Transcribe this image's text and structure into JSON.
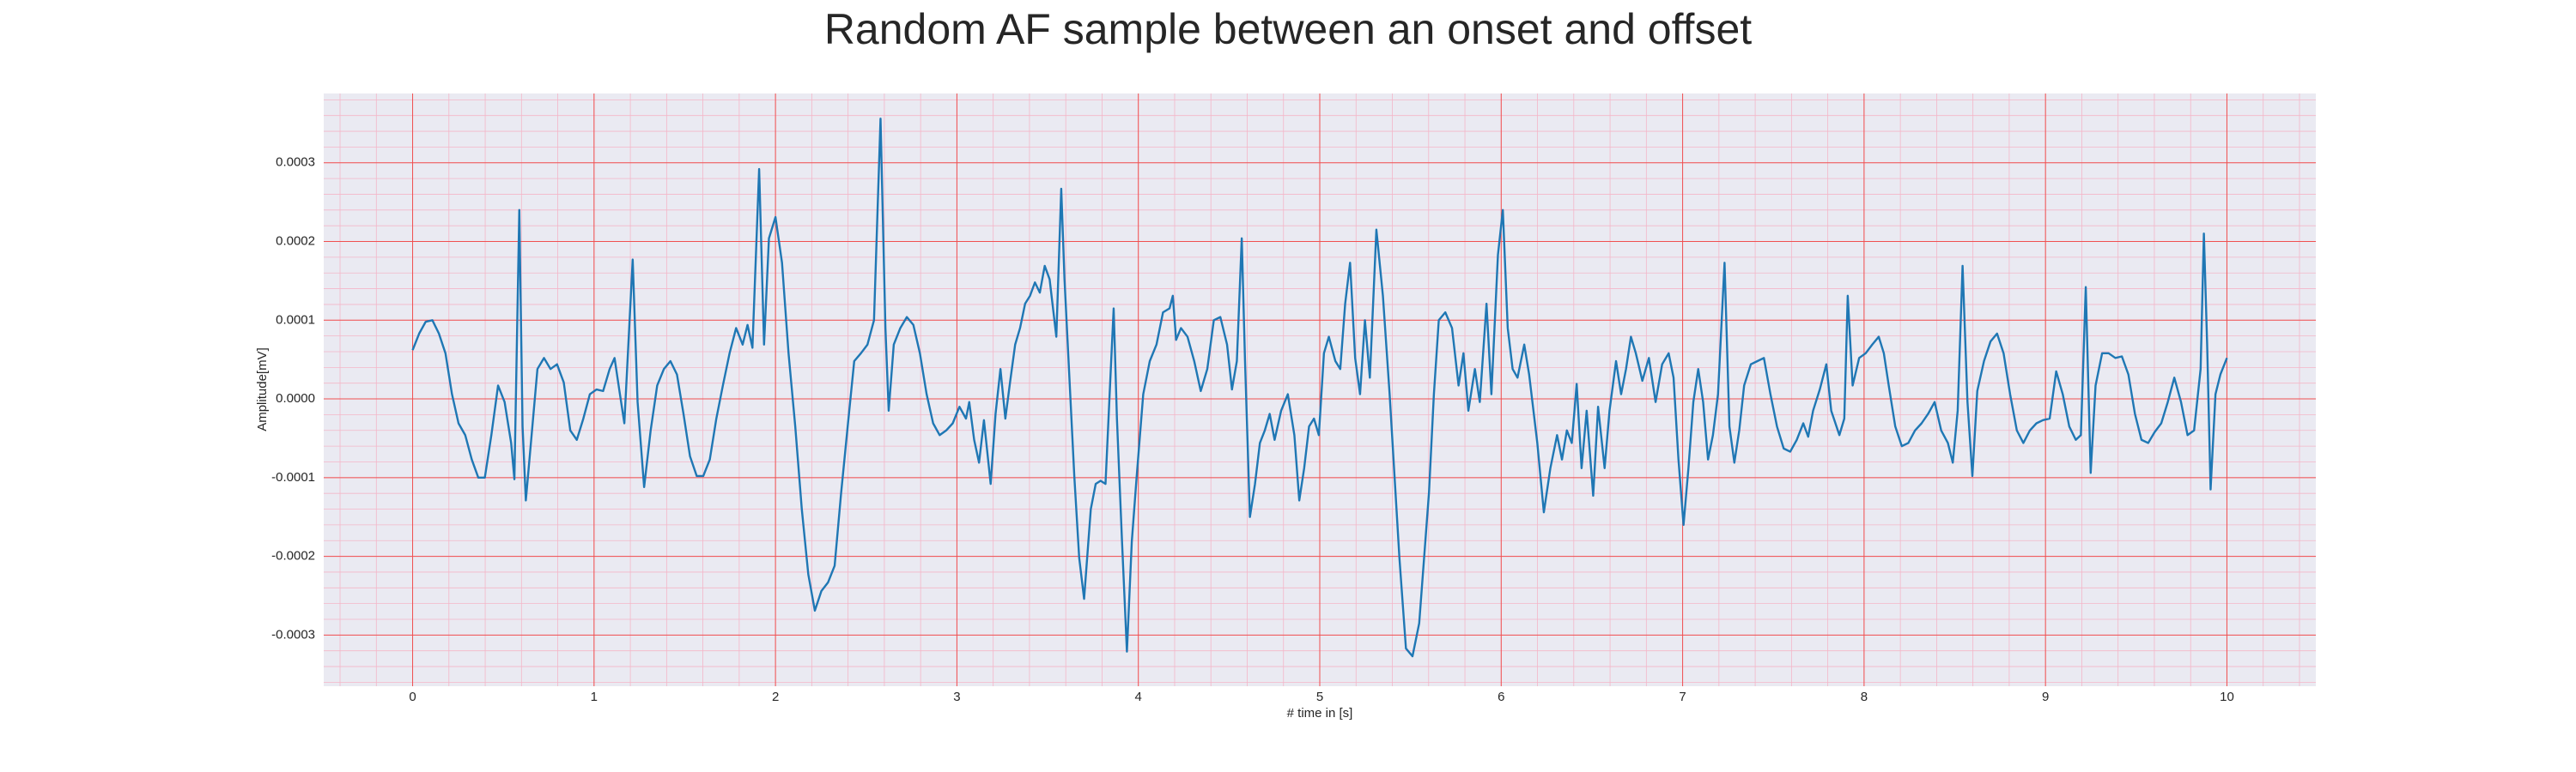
{
  "chart_data": {
    "type": "line",
    "title": "Random AF sample between an onset and offset",
    "xlabel": "# time in [s]",
    "ylabel": "Amplitude[mV]",
    "xlim": [
      -0.49,
      10.49
    ],
    "ylim": [
      -0.000365,
      0.000388
    ],
    "xticks": [
      0,
      1,
      2,
      3,
      4,
      5,
      6,
      7,
      8,
      9,
      10
    ],
    "yticks": [
      -0.0003,
      -0.0002,
      -0.0001,
      {
        "value": 0,
        "label": "0.0000"
      },
      0.0001,
      0.0002,
      0.0003
    ],
    "grid": true,
    "minor_grid": true,
    "x": [
      0,
      0.036,
      0.072,
      0.109,
      0.145,
      0.181,
      0.217,
      0.253,
      0.29,
      0.326,
      0.362,
      0.398,
      0.434,
      0.471,
      0.507,
      0.543,
      0.561,
      0.588,
      0.606,
      0.624,
      0.652,
      0.688,
      0.724,
      0.76,
      0.796,
      0.833,
      0.869,
      0.905,
      0.941,
      0.977,
      1.014,
      1.05,
      1.086,
      1.113,
      1.14,
      1.167,
      1.213,
      1.24,
      1.276,
      1.312,
      1.348,
      1.385,
      1.421,
      1.457,
      1.493,
      1.529,
      1.566,
      1.602,
      1.638,
      1.674,
      1.71,
      1.747,
      1.783,
      1.819,
      1.846,
      1.873,
      1.91,
      1.937,
      1.964,
      2,
      2.036,
      2.072,
      2.109,
      2.145,
      2.181,
      2.217,
      2.253,
      2.29,
      2.326,
      2.362,
      2.398,
      2.434,
      2.471,
      2.507,
      2.543,
      2.579,
      2.606,
      2.624,
      2.652,
      2.688,
      2.724,
      2.76,
      2.796,
      2.833,
      2.869,
      2.905,
      2.941,
      2.977,
      3.014,
      3.05,
      3.068,
      3.095,
      3.122,
      3.149,
      3.186,
      3.213,
      3.24,
      3.267,
      3.294,
      3.321,
      3.348,
      3.376,
      3.403,
      3.43,
      3.457,
      3.484,
      3.511,
      3.548,
      3.575,
      3.593,
      3.62,
      3.647,
      3.674,
      3.701,
      3.738,
      3.765,
      3.792,
      3.819,
      3.846,
      3.864,
      3.882,
      3.91,
      3.937,
      3.964,
      3.991,
      4.027,
      4.063,
      4.1,
      4.136,
      4.172,
      4.19,
      4.208,
      4.235,
      4.271,
      4.308,
      4.344,
      4.38,
      4.416,
      4.452,
      4.489,
      4.516,
      4.543,
      4.57,
      4.588,
      4.615,
      4.643,
      4.67,
      4.697,
      4.724,
      4.751,
      4.787,
      4.824,
      4.86,
      4.887,
      4.914,
      4.941,
      4.968,
      4.995,
      5.023,
      5.05,
      5.086,
      5.113,
      5.14,
      5.167,
      5.195,
      5.222,
      5.249,
      5.276,
      5.312,
      5.348,
      5.385,
      5.412,
      5.439,
      5.475,
      5.511,
      5.548,
      5.575,
      5.602,
      5.629,
      5.656,
      5.692,
      5.729,
      5.765,
      5.792,
      5.819,
      5.855,
      5.882,
      5.919,
      5.946,
      5.982,
      6.009,
      6.036,
      6.063,
      6.09,
      6.127,
      6.154,
      6.199,
      6.235,
      6.271,
      6.308,
      6.335,
      6.362,
      6.389,
      6.416,
      6.443,
      6.471,
      6.507,
      6.534,
      6.57,
      6.597,
      6.633,
      6.661,
      6.688,
      6.715,
      6.742,
      6.778,
      6.814,
      6.851,
      6.887,
      6.923,
      6.95,
      6.977,
      7.005,
      7.032,
      7.059,
      7.086,
      7.113,
      7.14,
      7.167,
      7.195,
      7.231,
      7.258,
      7.285,
      7.312,
      7.339,
      7.376,
      7.412,
      7.448,
      7.484,
      7.52,
      7.557,
      7.593,
      7.629,
      7.665,
      7.692,
      7.719,
      7.756,
      7.792,
      7.819,
      7.864,
      7.891,
      7.91,
      7.937,
      7.973,
      8.009,
      8.045,
      8.081,
      8.109,
      8.136,
      8.172,
      8.208,
      8.244,
      8.281,
      8.317,
      8.353,
      8.389,
      8.425,
      8.462,
      8.489,
      8.516,
      8.543,
      8.57,
      8.597,
      8.624,
      8.661,
      8.697,
      8.733,
      8.769,
      8.805,
      8.842,
      8.878,
      8.914,
      8.95,
      8.986,
      9.023,
      9.059,
      9.095,
      9.131,
      9.167,
      9.195,
      9.222,
      9.249,
      9.276,
      9.312,
      9.348,
      9.385,
      9.421,
      9.457,
      9.493,
      9.529,
      9.566,
      9.602,
      9.638,
      9.674,
      9.71,
      9.747,
      9.783,
      9.819,
      9.855,
      9.873,
      9.891,
      9.91,
      9.937,
      9.964,
      10
    ],
    "series": [
      {
        "color": "#1f77b4",
        "values": [
          6.2e-05,
          8.3e-05,
          9.8e-05,
          0.0001,
          8.3e-05,
          5.8e-05,
          6e-06,
          -3.1e-05,
          -4.6e-05,
          -7.7e-05,
          -0.0001,
          -0.0001,
          -4.6e-05,
          1.7e-05,
          -4e-06,
          -5.6e-05,
          -0.000102,
          0.00024,
          -3.5e-05,
          -0.000129,
          -5.6e-05,
          3.8e-05,
          5.2e-05,
          3.8e-05,
          4.4e-05,
          2.1e-05,
          -4e-05,
          -5.2e-05,
          -2.5e-05,
          6e-06,
          1.2e-05,
          1e-05,
          3.8e-05,
          5.2e-05,
          1e-05,
          -3.1e-05,
          0.000177,
          -4e-06,
          -0.000112,
          -4e-05,
          1.7e-05,
          3.8e-05,
          4.8e-05,
          3.1e-05,
          -1.9e-05,
          -7.3e-05,
          -9.8e-05,
          -9.8e-05,
          -7.7e-05,
          -2.5e-05,
          1.7e-05,
          5.8e-05,
          9e-05,
          6.9e-05,
          9.4e-05,
          6.5e-05,
          0.000292,
          6.9e-05,
          0.000204,
          0.000231,
          0.000173,
          5.8e-05,
          -3.5e-05,
          -0.00014,
          -0.000223,
          -0.000269,
          -0.000244,
          -0.000233,
          -0.000212,
          -0.000119,
          -3.5e-05,
          4.8e-05,
          5.8e-05,
          6.9e-05,
          0.0001,
          0.000356,
          9e-05,
          -1.5e-05,
          6.9e-05,
          9e-05,
          0.000104,
          9.4e-05,
          5.8e-05,
          6e-06,
          -3.1e-05,
          -4.6e-05,
          -4e-05,
          -3.1e-05,
          -1e-05,
          -2.5e-05,
          -4e-06,
          -5.2e-05,
          -8.1e-05,
          -2.7e-05,
          -0.000108,
          -1.9e-05,
          3.8e-05,
          -2.5e-05,
          2.3e-05,
          6.9e-05,
          9e-05,
          0.000121,
          0.000131,
          0.000148,
          0.000135,
          0.000169,
          0.000152,
          7.9e-05,
          0.000267,
          0.000152,
          2.7e-05,
          -9.8e-05,
          -0.000202,
          -0.000254,
          -0.00014,
          -0.000108,
          -0.000104,
          -0.000108,
          2.7e-05,
          0.000115,
          -2.5e-05,
          -0.000181,
          -0.000321,
          -0.000181,
          -9.8e-05,
          6e-06,
          4.8e-05,
          6.9e-05,
          0.00011,
          0.000115,
          0.000131,
          7.5e-05,
          9e-05,
          7.9e-05,
          4.8e-05,
          1e-05,
          3.8e-05,
          0.0001,
          0.000104,
          6.9e-05,
          1.2e-05,
          4.8e-05,
          0.000204,
          4.8e-05,
          -0.00015,
          -0.000108,
          -5.6e-05,
          -4e-05,
          -1.9e-05,
          -5.2e-05,
          -1.5e-05,
          6e-06,
          -4.6e-05,
          -0.000129,
          -8.8e-05,
          -3.5e-05,
          -2.5e-05,
          -4.6e-05,
          5.8e-05,
          7.9e-05,
          4.8e-05,
          3.8e-05,
          0.000121,
          0.000173,
          5.2e-05,
          6e-06,
          0.0001,
          2.7e-05,
          0.000215,
          0.000131,
          6e-06,
          -9.8e-05,
          -0.000202,
          -0.000317,
          -0.000327,
          -0.000285,
          -0.000202,
          -0.000119,
          6e-06,
          0.0001,
          0.00011,
          9e-05,
          1.7e-05,
          5.8e-05,
          -1.5e-05,
          3.8e-05,
          -4e-06,
          0.000121,
          6e-06,
          0.000183,
          0.00024,
          9e-05,
          3.8e-05,
          2.7e-05,
          6.9e-05,
          3.1e-05,
          -5.6e-05,
          -0.000144,
          -8.8e-05,
          -4.6e-05,
          -7.7e-05,
          -4e-05,
          -5.6e-05,
          1.9e-05,
          -8.8e-05,
          -1.5e-05,
          -0.000123,
          -1e-05,
          -8.8e-05,
          -1.5e-05,
          4.8e-05,
          6e-06,
          3.8e-05,
          7.9e-05,
          5.8e-05,
          2.3e-05,
          5.2e-05,
          -4e-06,
          4.4e-05,
          5.8e-05,
          2.7e-05,
          -7.7e-05,
          -0.00016,
          -8.8e-05,
          -4e-06,
          3.8e-05,
          -4e-06,
          -7.7e-05,
          -4.6e-05,
          6e-06,
          0.000173,
          -3.5e-05,
          -8.1e-05,
          -4e-05,
          1.7e-05,
          4.4e-05,
          4.8e-05,
          5.2e-05,
          6e-06,
          -3.5e-05,
          -6.3e-05,
          -6.7e-05,
          -5.2e-05,
          -3.1e-05,
          -4.8e-05,
          -1.5e-05,
          1.2e-05,
          4.4e-05,
          -1.5e-05,
          -4.6e-05,
          -2.5e-05,
          0.000131,
          1.7e-05,
          5.2e-05,
          5.8e-05,
          6.9e-05,
          7.9e-05,
          5.8e-05,
          1.7e-05,
          -3.5e-05,
          -6e-05,
          -5.6e-05,
          -4e-05,
          -3.1e-05,
          -1.9e-05,
          -4e-06,
          -4e-05,
          -5.6e-05,
          -8.1e-05,
          -1.5e-05,
          0.000169,
          -4e-06,
          -9.8e-05,
          1e-05,
          4.8e-05,
          7.3e-05,
          8.3e-05,
          5.8e-05,
          6e-06,
          -4e-05,
          -5.6e-05,
          -4e-05,
          -3.1e-05,
          -2.7e-05,
          -2.5e-05,
          3.5e-05,
          6e-06,
          -3.5e-05,
          -5.2e-05,
          -4.6e-05,
          0.000142,
          -9.4e-05,
          1.7e-05,
          5.8e-05,
          5.8e-05,
          5.2e-05,
          5.4e-05,
          3.1e-05,
          -1.9e-05,
          -5.2e-05,
          -5.6e-05,
          -4.2e-05,
          -3.1e-05,
          -4e-06,
          2.7e-05,
          -4e-06,
          -4.6e-05,
          -4e-05,
          3.8e-05,
          0.00021,
          6.9e-05,
          -0.000115,
          6e-06,
          3.1e-05,
          5.2e-05
        ]
      }
    ]
  }
}
